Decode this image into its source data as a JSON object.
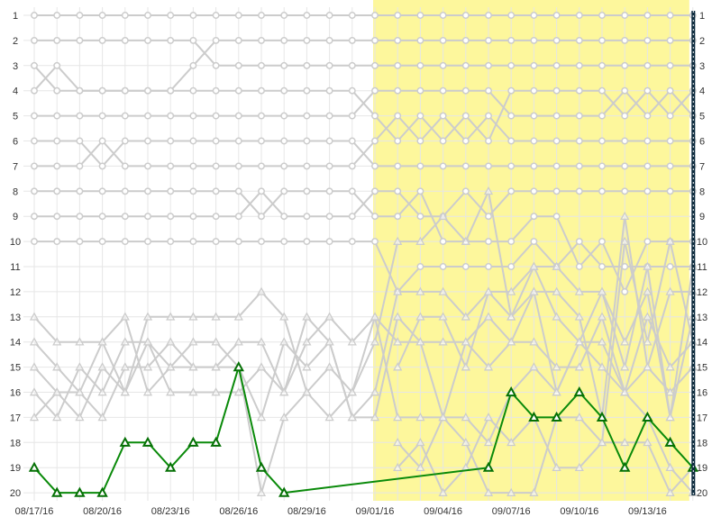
{
  "chart_data": {
    "type": "line",
    "title": "",
    "xlabel": "",
    "ylabel": "",
    "y_axis": {
      "reversed": true,
      "range": [
        1,
        20
      ],
      "ticks": [
        1,
        2,
        3,
        4,
        5,
        6,
        7,
        8,
        9,
        10,
        11,
        12,
        13,
        14,
        15,
        16,
        17,
        18,
        19,
        20
      ],
      "labels_on_both_sides": true
    },
    "grid": true,
    "x_dates": [
      "08/17/16",
      "08/18/16",
      "08/19/16",
      "08/20/16",
      "08/21/16",
      "08/22/16",
      "08/23/16",
      "08/24/16",
      "08/25/16",
      "08/26/16",
      "08/27/16",
      "08/28/16",
      "08/29/16",
      "08/30/16",
      "08/31/16",
      "09/01/16",
      "09/02/16",
      "09/03/16",
      "09/04/16",
      "09/05/16",
      "09/06/16",
      "09/07/16",
      "09/08/16",
      "09/09/16",
      "09/10/16",
      "09/11/16",
      "09/12/16",
      "09/13/16",
      "09/14/16",
      "09/15/16"
    ],
    "x_tick_labels": [
      "08/17/16",
      "08/20/16",
      "08/23/16",
      "08/26/16",
      "08/29/16",
      "09/01/16",
      "09/04/16",
      "09/07/16",
      "09/10/16",
      "09/13/16"
    ],
    "highlight_range": {
      "from": "09/01/16",
      "to": "09/15/16",
      "color": "#fdf79c"
    },
    "current_marker": {
      "date": "09/15/16",
      "color": "#0d2b3e"
    },
    "colors": {
      "background_series": "#cccccc",
      "highlight_series": "#0a8a0a",
      "highlight_series_dark": "#057005"
    },
    "series": [
      {
        "marker": "circle",
        "values": [
          1,
          1,
          1,
          1,
          1,
          1,
          1,
          1,
          1,
          1,
          1,
          1,
          1,
          1,
          1,
          1,
          1,
          1,
          1,
          1,
          1,
          1,
          1,
          1,
          1,
          1,
          1,
          1,
          1,
          1
        ]
      },
      {
        "marker": "circle",
        "values": [
          2,
          2,
          2,
          2,
          2,
          2,
          2,
          2,
          3,
          3,
          3,
          3,
          3,
          3,
          3,
          3,
          3,
          3,
          3,
          3,
          3,
          3,
          3,
          3,
          3,
          3,
          3,
          3,
          3,
          3
        ]
      },
      {
        "marker": "circle",
        "values": [
          4,
          3,
          4,
          4,
          4,
          4,
          4,
          3,
          2,
          2,
          2,
          2,
          2,
          2,
          2,
          2,
          2,
          2,
          2,
          2,
          2,
          2,
          2,
          2,
          2,
          2,
          2,
          2,
          2,
          2
        ]
      },
      {
        "marker": "circle",
        "values": [
          3,
          4,
          4,
          4,
          4,
          4,
          4,
          4,
          4,
          4,
          4,
          4,
          4,
          4,
          4,
          5,
          6,
          5,
          6,
          5,
          6,
          4,
          4,
          4,
          4,
          4,
          5,
          4,
          5,
          4
        ]
      },
      {
        "marker": "circle",
        "values": [
          5,
          5,
          5,
          5,
          5,
          5,
          5,
          5,
          5,
          5,
          5,
          5,
          5,
          5,
          5,
          4,
          4,
          4,
          4,
          4,
          4,
          5,
          5,
          5,
          5,
          5,
          4,
          5,
          4,
          5
        ]
      },
      {
        "marker": "circle",
        "values": [
          7,
          7,
          7,
          6,
          7,
          7,
          7,
          7,
          7,
          7,
          7,
          7,
          7,
          7,
          7,
          6,
          5,
          6,
          5,
          6,
          5,
          6,
          6,
          6,
          6,
          6,
          6,
          6,
          6,
          6
        ]
      },
      {
        "marker": "circle",
        "values": [
          6,
          6,
          6,
          7,
          6,
          6,
          6,
          6,
          6,
          6,
          6,
          6,
          6,
          6,
          6,
          7,
          7,
          7,
          7,
          7,
          7,
          7,
          7,
          7,
          7,
          7,
          7,
          7,
          7,
          7
        ]
      },
      {
        "marker": "circle",
        "values": [
          8,
          8,
          8,
          8,
          8,
          8,
          8,
          8,
          8,
          8,
          9,
          8,
          8,
          8,
          8,
          9,
          9,
          8,
          10,
          10,
          10,
          10,
          9,
          9,
          11,
          10,
          12,
          10,
          10,
          10
        ]
      },
      {
        "marker": "circle",
        "values": [
          9,
          9,
          9,
          9,
          9,
          9,
          9,
          9,
          9,
          9,
          8,
          9,
          9,
          9,
          9,
          8,
          8,
          9,
          9,
          8,
          9,
          8,
          8,
          8,
          8,
          8,
          8,
          8,
          8,
          8
        ]
      },
      {
        "marker": "circle",
        "values": [
          10,
          10,
          10,
          10,
          10,
          10,
          10,
          10,
          10,
          10,
          10,
          10,
          10,
          10,
          10,
          10,
          12,
          11,
          11,
          11,
          11,
          11,
          10,
          11,
          10,
          11,
          11,
          11,
          11,
          11
        ]
      },
      {
        "marker": "triangle",
        "values": [
          13,
          14,
          14,
          14,
          16,
          14,
          15,
          14,
          14,
          15,
          17,
          14,
          15,
          14,
          17,
          17,
          13,
          14,
          14,
          14,
          15,
          14,
          14,
          15,
          15,
          13,
          16,
          15,
          16,
          15
        ]
      },
      {
        "marker": "triangle",
        "values": [
          14,
          15,
          16,
          17,
          15,
          15,
          14,
          15,
          15,
          14,
          14,
          16,
          14,
          13,
          14,
          13,
          14,
          14,
          17,
          17,
          18,
          16,
          15,
          16,
          14,
          14,
          16,
          13,
          15,
          14
        ]
      },
      {
        "marker": "triangle",
        "values": [
          15,
          16,
          17,
          15,
          16,
          13,
          13,
          13,
          13,
          13,
          12,
          13,
          16,
          17,
          16,
          14,
          10,
          10,
          9,
          10,
          8,
          13,
          12,
          16,
          14,
          15,
          16,
          17,
          19,
          20
        ]
      },
      {
        "marker": "triangle",
        "values": [
          16,
          17,
          15,
          16,
          14,
          14,
          16,
          16,
          16,
          16,
          15,
          16,
          13,
          14,
          17,
          16,
          12,
          12,
          12,
          13,
          12,
          12,
          11,
          11,
          12,
          12,
          14,
          12,
          17,
          13
        ]
      },
      {
        "marker": "triangle",
        "values": [
          17,
          16,
          16,
          14,
          13,
          16,
          15,
          15,
          15,
          15,
          20,
          17,
          16,
          15,
          16,
          13,
          17,
          17,
          17,
          18,
          20,
          20,
          20,
          17,
          17,
          18,
          18,
          18,
          20,
          19
        ]
      },
      {
        "marker": "triangle",
        "values": [
          null,
          null,
          null,
          null,
          null,
          null,
          null,
          null,
          null,
          null,
          null,
          null,
          null,
          null,
          null,
          null,
          19,
          18,
          20,
          19,
          17,
          18,
          17,
          19,
          19,
          18,
          10,
          14,
          10,
          14
        ]
      },
      {
        "marker": "triangle",
        "values": [
          null,
          null,
          null,
          null,
          null,
          null,
          null,
          null,
          null,
          null,
          null,
          null,
          null,
          null,
          null,
          null,
          18,
          19,
          17,
          14,
          13,
          14,
          12,
          12,
          13,
          17,
          9,
          15,
          12,
          12
        ]
      },
      {
        "marker": "triangle",
        "values": [
          null,
          null,
          null,
          null,
          null,
          null,
          null,
          null,
          null,
          null,
          null,
          null,
          null,
          null,
          null,
          null,
          15,
          13,
          13,
          15,
          12,
          13,
          11,
          13,
          14,
          12,
          15,
          11,
          17,
          11
        ]
      },
      {
        "marker": "triangle",
        "values": [
          19,
          20,
          20,
          20,
          18,
          18,
          19,
          18,
          18,
          15,
          19,
          20,
          null,
          null,
          null,
          null,
          null,
          null,
          null,
          null,
          19,
          16,
          17,
          17,
          16,
          17,
          19,
          17,
          18,
          19
        ],
        "highlight": true
      }
    ]
  }
}
